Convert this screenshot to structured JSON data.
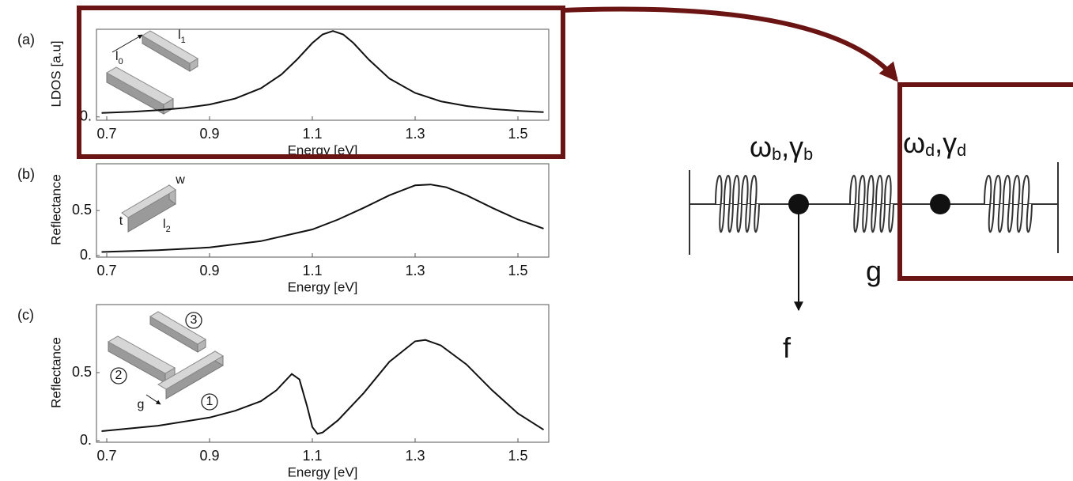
{
  "chart_data": [
    {
      "type": "line",
      "panel_label": "(a)",
      "ylabel": "LDOS [a.u]",
      "xlabel": "Energy [eV]",
      "color": "#111111",
      "x": [
        0.69,
        0.75,
        0.8,
        0.85,
        0.9,
        0.95,
        1.0,
        1.04,
        1.07,
        1.1,
        1.12,
        1.14,
        1.16,
        1.18,
        1.21,
        1.25,
        1.3,
        1.35,
        1.4,
        1.45,
        1.5,
        1.55
      ],
      "values": [
        0.045,
        0.059,
        0.077,
        0.102,
        0.142,
        0.209,
        0.327,
        0.485,
        0.653,
        0.843,
        0.941,
        0.98,
        0.941,
        0.843,
        0.653,
        0.438,
        0.273,
        0.178,
        0.124,
        0.091,
        0.069,
        0.054
      ],
      "xlim": [
        0.68,
        1.56
      ],
      "ylim": [
        -0.02,
        1.0
      ],
      "xticks": [
        0.7,
        0.9,
        1.1,
        1.3,
        1.5
      ],
      "yticks": [
        {
          "value": 0,
          "label": "0."
        }
      ],
      "annotations": [
        {
          "text": "l",
          "sub": "0"
        },
        {
          "text": "l",
          "sub": "1"
        }
      ]
    },
    {
      "type": "line",
      "panel_label": "(b)",
      "ylabel": "Reflectance",
      "xlabel": "Energy [eV]",
      "color": "#111111",
      "x": [
        0.69,
        0.8,
        0.9,
        1.0,
        1.1,
        1.15,
        1.2,
        1.25,
        1.3,
        1.33,
        1.36,
        1.4,
        1.45,
        1.5,
        1.55
      ],
      "values": [
        0.04,
        0.06,
        0.09,
        0.16,
        0.29,
        0.4,
        0.53,
        0.67,
        0.78,
        0.79,
        0.76,
        0.67,
        0.53,
        0.4,
        0.3
      ],
      "xlim": [
        0.68,
        1.56
      ],
      "ylim": [
        0,
        1.02
      ],
      "xticks": [
        0.7,
        0.9,
        1.1,
        1.3,
        1.5
      ],
      "yticks": [
        {
          "value": 0,
          "label": "0."
        },
        0.5
      ],
      "annotations": [
        {
          "text": "w"
        },
        {
          "text": "t"
        },
        {
          "text": "l",
          "sub": "2"
        }
      ]
    },
    {
      "type": "line",
      "panel_label": "(c)",
      "ylabel": "Reflectance",
      "xlabel": "Energy [eV]",
      "color": "#111111",
      "x": [
        0.69,
        0.8,
        0.9,
        0.95,
        1.0,
        1.03,
        1.06,
        1.075,
        1.09,
        1.1,
        1.11,
        1.12,
        1.15,
        1.2,
        1.25,
        1.3,
        1.32,
        1.35,
        1.4,
        1.45,
        1.5,
        1.55
      ],
      "values": [
        0.07,
        0.11,
        0.17,
        0.22,
        0.29,
        0.37,
        0.49,
        0.45,
        0.25,
        0.1,
        0.05,
        0.06,
        0.15,
        0.35,
        0.58,
        0.73,
        0.74,
        0.7,
        0.56,
        0.37,
        0.2,
        0.08
      ],
      "xlim": [
        0.68,
        1.56
      ],
      "ylim": [
        0,
        1.0
      ],
      "xticks": [
        0.7,
        0.9,
        1.1,
        1.3,
        1.5
      ],
      "yticks": [
        {
          "value": 0,
          "label": "0."
        },
        0.5
      ],
      "annotations": [
        {
          "text": "3"
        },
        {
          "text": "2"
        },
        {
          "text": "1"
        },
        {
          "text": "g"
        }
      ]
    }
  ],
  "diagram": {
    "labels": [
      [
        {
          "t": "ω"
        },
        {
          "t": "b",
          "sub": true
        },
        {
          "t": ","
        },
        {
          "t": "γ"
        },
        {
          "t": "b",
          "sub": true
        }
      ],
      [
        {
          "t": "ω"
        },
        {
          "t": "d",
          "sub": true
        },
        {
          "t": ","
        },
        {
          "t": "γ"
        },
        {
          "t": "d",
          "sub": true
        }
      ],
      [
        {
          "t": "g"
        }
      ],
      [
        {
          "t": "f"
        }
      ]
    ]
  }
}
